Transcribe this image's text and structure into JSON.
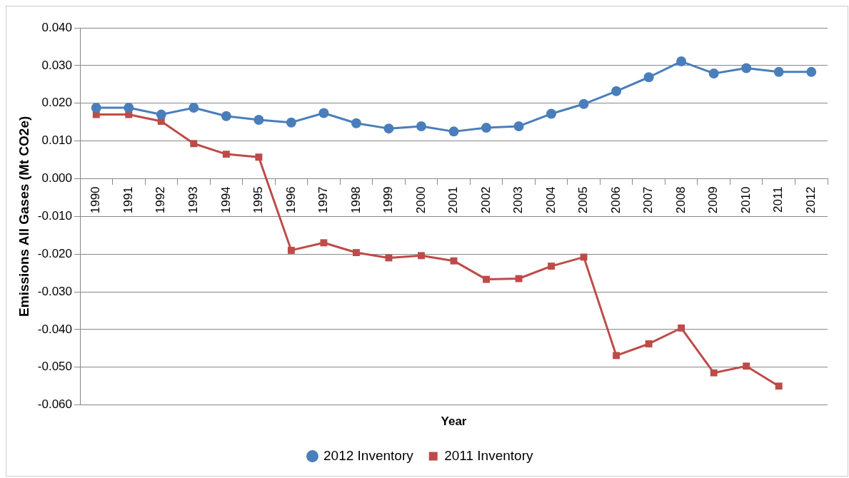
{
  "chart_data": {
    "type": "line",
    "xlabel": "Year",
    "ylabel": "Emissions All Gases (Mt CO2e)",
    "categories": [
      "1990",
      "1991",
      "1992",
      "1993",
      "1994",
      "1995",
      "1996",
      "1997",
      "1998",
      "1999",
      "2000",
      "2001",
      "2002",
      "2003",
      "2004",
      "2005",
      "2006",
      "2007",
      "2008",
      "2009",
      "2010",
      "2011",
      "2012"
    ],
    "series": [
      {
        "name": "2012 Inventory",
        "color": "#4a7ebb",
        "marker": "circle",
        "values": [
          0.0188,
          0.0188,
          0.017,
          0.0188,
          0.0166,
          0.0156,
          0.0149,
          0.0174,
          0.0147,
          0.0133,
          0.0139,
          0.0125,
          0.0135,
          0.0139,
          0.0172,
          0.0198,
          0.0232,
          0.0269,
          0.0311,
          0.0279,
          0.0293,
          0.0283,
          0.0283
        ]
      },
      {
        "name": "2011 Inventory",
        "color": "#be4b48",
        "marker": "square",
        "values": [
          0.017,
          0.017,
          0.0152,
          0.0093,
          0.0065,
          0.0057,
          -0.019,
          -0.017,
          -0.0196,
          -0.021,
          -0.0204,
          -0.0218,
          -0.0267,
          -0.0265,
          -0.0232,
          -0.0208,
          -0.0469,
          -0.0438,
          -0.0396,
          -0.0515,
          -0.0497,
          -0.055,
          null
        ]
      }
    ],
    "ylim": [
      -0.06,
      0.04
    ],
    "yticks": [
      {
        "value": -0.06,
        "label": "-0.060"
      },
      {
        "value": -0.05,
        "label": "-0.050"
      },
      {
        "value": -0.04,
        "label": "-0.040"
      },
      {
        "value": -0.03,
        "label": "-0.030"
      },
      {
        "value": -0.02,
        "label": "-0.020"
      },
      {
        "value": -0.01,
        "label": "-0.010"
      },
      {
        "value": 0,
        "label": "0.000"
      },
      {
        "value": 0.01,
        "label": "0.010"
      },
      {
        "value": 0.02,
        "label": "0.020"
      },
      {
        "value": 0.03,
        "label": "0.030"
      },
      {
        "value": 0.04,
        "label": "0.040"
      }
    ],
    "grid": "y",
    "legend": "bottom",
    "line_style": "solid"
  }
}
